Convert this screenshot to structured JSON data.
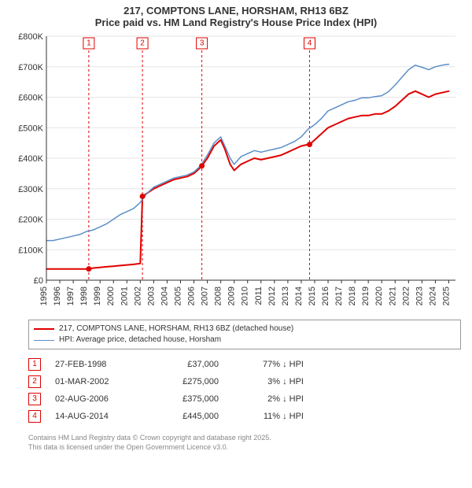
{
  "title_line1": "217, COMPTONS LANE, HORSHAM, RH13 6BZ",
  "title_line2": "Price paid vs. HM Land Registry's House Price Index (HPI)",
  "chart": {
    "type": "line",
    "background_color": "#ffffff",
    "grid_color": "#e6e6e6",
    "axis_color": "#333333",
    "x": {
      "min": 1995,
      "max": 2025.5,
      "ticks": [
        1995,
        1996,
        1997,
        1998,
        1999,
        2000,
        2001,
        2002,
        2003,
        2004,
        2005,
        2006,
        2007,
        2008,
        2009,
        2010,
        2011,
        2012,
        2013,
        2014,
        2015,
        2016,
        2017,
        2018,
        2019,
        2020,
        2021,
        2022,
        2023,
        2024,
        2025
      ]
    },
    "y": {
      "min": 0,
      "max": 800000,
      "ticks": [
        0,
        100000,
        200000,
        300000,
        400000,
        500000,
        600000,
        700000,
        800000
      ],
      "tick_labels": [
        "£0",
        "£100K",
        "£200K",
        "£300K",
        "£400K",
        "£500K",
        "£600K",
        "£700K",
        "£800K"
      ]
    },
    "series": [
      {
        "name": "price_paid",
        "label": "217, COMPTONS LANE, HORSHAM, RH13 6BZ (detached house)",
        "color": "#e00000",
        "line_width": 2,
        "points": [
          [
            1995,
            37000
          ],
          [
            1996,
            37000
          ],
          [
            1997,
            37000
          ],
          [
            1998,
            37000
          ],
          [
            1998.16,
            37000
          ],
          [
            1998.5,
            40000
          ],
          [
            1999,
            42000
          ],
          [
            1999.5,
            44000
          ],
          [
            2000,
            46000
          ],
          [
            2000.5,
            48000
          ],
          [
            2001,
            50000
          ],
          [
            2001.5,
            52000
          ],
          [
            2002,
            55000
          ],
          [
            2002.16,
            275000
          ],
          [
            2002.5,
            285000
          ],
          [
            2003,
            300000
          ],
          [
            2003.5,
            310000
          ],
          [
            2004,
            320000
          ],
          [
            2004.5,
            330000
          ],
          [
            2005,
            335000
          ],
          [
            2005.5,
            340000
          ],
          [
            2006,
            350000
          ],
          [
            2006.5,
            370000
          ],
          [
            2006.59,
            375000
          ],
          [
            2007,
            400000
          ],
          [
            2007.5,
            440000
          ],
          [
            2008,
            460000
          ],
          [
            2008.3,
            430000
          ],
          [
            2008.7,
            380000
          ],
          [
            2009,
            360000
          ],
          [
            2009.5,
            380000
          ],
          [
            2010,
            390000
          ],
          [
            2010.5,
            400000
          ],
          [
            2011,
            395000
          ],
          [
            2011.5,
            400000
          ],
          [
            2012,
            405000
          ],
          [
            2012.5,
            410000
          ],
          [
            2013,
            420000
          ],
          [
            2013.5,
            430000
          ],
          [
            2014,
            440000
          ],
          [
            2014.5,
            445000
          ],
          [
            2014.62,
            445000
          ],
          [
            2015,
            460000
          ],
          [
            2015.5,
            480000
          ],
          [
            2016,
            500000
          ],
          [
            2016.5,
            510000
          ],
          [
            2017,
            520000
          ],
          [
            2017.5,
            530000
          ],
          [
            2018,
            535000
          ],
          [
            2018.5,
            540000
          ],
          [
            2019,
            540000
          ],
          [
            2019.5,
            545000
          ],
          [
            2020,
            545000
          ],
          [
            2020.5,
            555000
          ],
          [
            2021,
            570000
          ],
          [
            2021.5,
            590000
          ],
          [
            2022,
            610000
          ],
          [
            2022.5,
            620000
          ],
          [
            2023,
            610000
          ],
          [
            2023.5,
            600000
          ],
          [
            2024,
            610000
          ],
          [
            2024.5,
            615000
          ],
          [
            2025,
            620000
          ]
        ],
        "sale_markers": [
          {
            "n": 1,
            "x": 1998.16,
            "y": 37000
          },
          {
            "n": 2,
            "x": 2002.16,
            "y": 275000
          },
          {
            "n": 3,
            "x": 2006.59,
            "y": 375000
          },
          {
            "n": 4,
            "x": 2014.62,
            "y": 445000
          }
        ]
      },
      {
        "name": "hpi",
        "label": "HPI: Average price, detached house, Horsham",
        "color": "#5b8fc8",
        "line_width": 1.5,
        "points": [
          [
            1995,
            130000
          ],
          [
            1995.5,
            130000
          ],
          [
            1996,
            135000
          ],
          [
            1996.5,
            140000
          ],
          [
            1997,
            145000
          ],
          [
            1997.5,
            150000
          ],
          [
            1998,
            160000
          ],
          [
            1998.5,
            165000
          ],
          [
            1999,
            175000
          ],
          [
            1999.5,
            185000
          ],
          [
            2000,
            200000
          ],
          [
            2000.5,
            215000
          ],
          [
            2001,
            225000
          ],
          [
            2001.5,
            235000
          ],
          [
            2002,
            255000
          ],
          [
            2002.5,
            285000
          ],
          [
            2003,
            305000
          ],
          [
            2003.5,
            315000
          ],
          [
            2004,
            325000
          ],
          [
            2004.5,
            335000
          ],
          [
            2005,
            340000
          ],
          [
            2005.5,
            345000
          ],
          [
            2006,
            355000
          ],
          [
            2006.5,
            375000
          ],
          [
            2007,
            410000
          ],
          [
            2007.5,
            450000
          ],
          [
            2008,
            470000
          ],
          [
            2008.3,
            440000
          ],
          [
            2008.7,
            400000
          ],
          [
            2009,
            380000
          ],
          [
            2009.5,
            405000
          ],
          [
            2010,
            415000
          ],
          [
            2010.5,
            425000
          ],
          [
            2011,
            420000
          ],
          [
            2011.5,
            425000
          ],
          [
            2012,
            430000
          ],
          [
            2012.5,
            435000
          ],
          [
            2013,
            445000
          ],
          [
            2013.5,
            455000
          ],
          [
            2014,
            470000
          ],
          [
            2014.5,
            495000
          ],
          [
            2015,
            510000
          ],
          [
            2015.5,
            530000
          ],
          [
            2016,
            555000
          ],
          [
            2016.5,
            565000
          ],
          [
            2017,
            575000
          ],
          [
            2017.5,
            585000
          ],
          [
            2018,
            590000
          ],
          [
            2018.5,
            598000
          ],
          [
            2019,
            598000
          ],
          [
            2019.5,
            602000
          ],
          [
            2020,
            605000
          ],
          [
            2020.5,
            618000
          ],
          [
            2021,
            640000
          ],
          [
            2021.5,
            665000
          ],
          [
            2022,
            690000
          ],
          [
            2022.5,
            705000
          ],
          [
            2023,
            698000
          ],
          [
            2023.5,
            690000
          ],
          [
            2024,
            700000
          ],
          [
            2024.5,
            705000
          ],
          [
            2025,
            708000
          ]
        ]
      }
    ],
    "marker_line_color": "#e00000",
    "marker_line_dash": "3,3",
    "marker_box_border": "#e00000",
    "marker_box_fill": "#ffffff",
    "marker_text_color": "#e00000",
    "marker_dot_color": "#e00000",
    "marker_dot_radius": 3.5
  },
  "legend": {
    "items": [
      {
        "color": "#e00000",
        "width": 2,
        "label": "217, COMPTONS LANE, HORSHAM, RH13 6BZ (detached house)"
      },
      {
        "color": "#5b8fc8",
        "width": 1.5,
        "label": "HPI: Average price, detached house, Horsham"
      }
    ]
  },
  "sales_table": {
    "hpi_suffix": "HPI",
    "down_arrow": "↓",
    "rows": [
      {
        "n": "1",
        "date": "27-FEB-1998",
        "price": "£37,000",
        "pct": "77% ↓ "
      },
      {
        "n": "2",
        "date": "01-MAR-2002",
        "price": "£275,000",
        "pct": "3% ↓ "
      },
      {
        "n": "3",
        "date": "02-AUG-2006",
        "price": "£375,000",
        "pct": "2% ↓ "
      },
      {
        "n": "4",
        "date": "14-AUG-2014",
        "price": "£445,000",
        "pct": "11% ↓ "
      }
    ]
  },
  "footer_line1": "Contains HM Land Registry data © Crown copyright and database right 2025.",
  "footer_line2": "This data is licensed under the Open Government Licence v3.0."
}
